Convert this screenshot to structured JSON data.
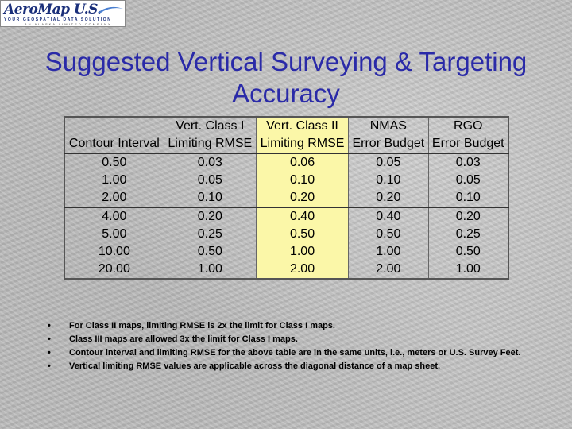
{
  "logo": {
    "brand": "AeroMap U.S.",
    "tagline": "YOUR GEOSPATIAL DATA SOLUTION",
    "subtag": "AN ALASKA LIMITED COMPANY"
  },
  "title_line1": "Suggested Vertical Surveying & Targeting",
  "title_line2": "Accuracy",
  "table": {
    "headers_row1": [
      "",
      "Vert. Class I",
      "Vert. Class II",
      "NMAS",
      "RGO"
    ],
    "headers_row2": [
      "Contour Interval",
      "Limiting RMSE",
      "Limiting RMSE",
      "Error Budget",
      "Error Budget"
    ],
    "rows": [
      [
        "0.50",
        "0.03",
        "0.06",
        "0.05",
        "0.03"
      ],
      [
        "1.00",
        "0.05",
        "0.10",
        "0.10",
        "0.05"
      ],
      [
        "2.00",
        "0.10",
        "0.20",
        "0.20",
        "0.10"
      ],
      [
        "4.00",
        "0.20",
        "0.40",
        "0.40",
        "0.20"
      ],
      [
        "5.00",
        "0.25",
        "0.50",
        "0.50",
        "0.25"
      ],
      [
        "10.00",
        "0.50",
        "1.00",
        "1.00",
        "0.50"
      ],
      [
        "20.00",
        "1.00",
        "2.00",
        "2.00",
        "1.00"
      ]
    ],
    "highlight_color": "#fbf7a8"
  },
  "notes": [
    "For Class II maps, limiting RMSE is 2x the limit for Class I maps.",
    "Class III maps are allowed 3x the limit for Class I maps.",
    "Contour interval and limiting RMSE for the above table are in the same units, i.e., meters or U.S. Survey Feet.",
    "Vertical limiting RMSE values are applicable across the diagonal distance of a map sheet."
  ],
  "bullet_char": "•",
  "colors": {
    "title": "#2a2aa8",
    "logo_text": "#1a2f7a"
  }
}
